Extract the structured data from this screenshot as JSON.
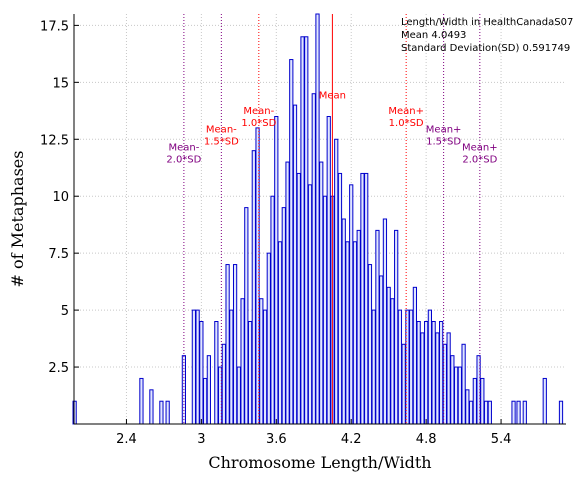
{
  "chart_data": {
    "type": "bar",
    "title": "",
    "xlabel": "Chromosome Length/Width",
    "ylabel": "# of Metaphases",
    "xlim": [
      1.98,
      5.92
    ],
    "ylim": [
      0,
      18
    ],
    "xticks": [
      "2.4",
      "3",
      "3.6",
      "4.2",
      "4.8",
      "5.4"
    ],
    "xtick_values": [
      2.4,
      3.0,
      3.6,
      4.2,
      4.8,
      5.4
    ],
    "yticks": [
      "2.5",
      "5",
      "7.5",
      "10",
      "12.5",
      "15",
      "17.5"
    ],
    "ytick_values": [
      2.5,
      5,
      7.5,
      10,
      12.5,
      15,
      17.5
    ],
    "grid": true,
    "bar_width": 0.0258,
    "bar_color": "#0000cc",
    "bar_fill": "#e0e6ff",
    "x": [
      1.985,
      2.52,
      2.6,
      2.68,
      2.73,
      2.86,
      2.94,
      2.97,
      3.0,
      3.03,
      3.06,
      3.12,
      3.15,
      3.18,
      3.21,
      3.24,
      3.27,
      3.3,
      3.33,
      3.36,
      3.39,
      3.42,
      3.45,
      3.48,
      3.51,
      3.54,
      3.57,
      3.6,
      3.63,
      3.66,
      3.69,
      3.72,
      3.75,
      3.78,
      3.81,
      3.84,
      3.87,
      3.9,
      3.93,
      3.96,
      3.99,
      4.02,
      4.05,
      4.08,
      4.11,
      4.14,
      4.17,
      4.2,
      4.23,
      4.26,
      4.29,
      4.32,
      4.35,
      4.38,
      4.41,
      4.44,
      4.47,
      4.5,
      4.53,
      4.56,
      4.59,
      4.62,
      4.65,
      4.68,
      4.71,
      4.74,
      4.77,
      4.8,
      4.83,
      4.86,
      4.89,
      4.92,
      4.95,
      4.98,
      5.01,
      5.04,
      5.07,
      5.1,
      5.13,
      5.16,
      5.19,
      5.22,
      5.25,
      5.28,
      5.31,
      5.5,
      5.54,
      5.59,
      5.75,
      5.88
    ],
    "values": [
      1,
      2,
      1.5,
      1,
      1,
      3,
      5,
      5,
      4.5,
      2,
      3,
      4.5,
      2.5,
      3.5,
      7,
      5,
      7,
      2.5,
      5.5,
      9.5,
      4.5,
      12,
      13,
      5.5,
      5,
      7.5,
      10,
      13.5,
      8,
      9.5,
      11.5,
      16,
      14,
      11,
      17,
      17,
      10.5,
      14.5,
      18,
      11.5,
      10,
      13.5,
      10,
      12.5,
      11,
      9,
      8,
      10.5,
      8,
      8.5,
      11,
      11,
      7,
      5,
      8.5,
      6.5,
      9,
      6,
      5.5,
      8.5,
      5,
      3.5,
      5,
      5,
      6,
      4.5,
      4,
      4.5,
      5,
      4.5,
      4,
      4.5,
      3.5,
      4,
      3,
      2.5,
      2.5,
      3.5,
      1.5,
      1,
      2,
      3,
      2,
      1,
      1,
      1,
      1,
      1,
      2,
      1
    ],
    "mean_line": {
      "x": 4.0493,
      "color": "#ff0000"
    },
    "sd_lines": [
      {
        "x": 2.86,
        "color": "#800080"
      },
      {
        "x": 3.16,
        "color": "#800080"
      },
      {
        "x": 3.46,
        "color": "#ff0000"
      },
      {
        "x": 4.64,
        "color": "#ff0000"
      },
      {
        "x": 4.94,
        "color": "#800080"
      },
      {
        "x": 5.23,
        "color": "#800080"
      }
    ],
    "annotations": [
      {
        "lines": [
          "Mean-",
          "2.0*SD"
        ],
        "x": 2.86,
        "y": 12.0,
        "color": "#800080"
      },
      {
        "lines": [
          "Mean-",
          "1.5*SD"
        ],
        "x": 3.16,
        "y": 12.8,
        "color": "#ff0000"
      },
      {
        "lines": [
          "Mean-",
          "1.0*SD"
        ],
        "x": 3.46,
        "y": 13.6,
        "color": "#ff0000"
      },
      {
        "lines": [
          "Mean"
        ],
        "x": 4.0493,
        "y": 14.3,
        "color": "#ff0000"
      },
      {
        "lines": [
          "Mean+",
          "1.0*SD"
        ],
        "x": 4.64,
        "y": 13.6,
        "color": "#ff0000"
      },
      {
        "lines": [
          "Mean+",
          "1.5*SD"
        ],
        "x": 4.94,
        "y": 12.8,
        "color": "#800080"
      },
      {
        "lines": [
          "Mean+",
          "2.0*SD"
        ],
        "x": 5.23,
        "y": 12.0,
        "color": "#800080"
      }
    ],
    "stats": [
      "Length/Width in HealthCanadaS07",
      "Mean 4.0493",
      "Standard Deviation(SD) 0.591749"
    ]
  }
}
